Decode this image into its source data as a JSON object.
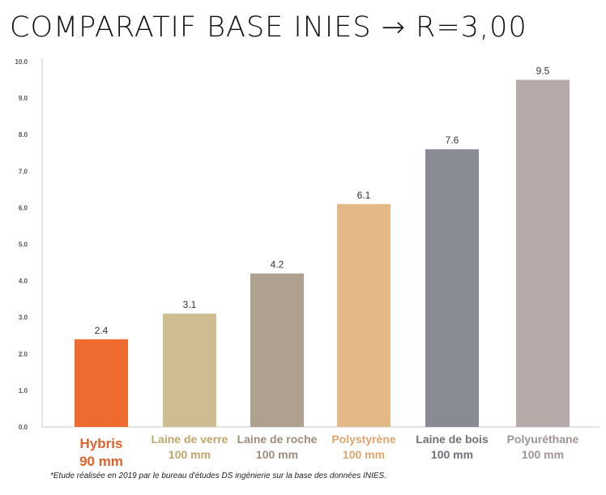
{
  "title": "COMPARATIF BASE INIES → R=3,00",
  "footnote": "*Etude réalisée en 2019 par le bureau d'études DS ingénierie sur la base des données INIES.",
  "chart_data": {
    "type": "bar",
    "categories": [
      {
        "name": "Hybris",
        "sub": "90 mm",
        "color": "#ef6a2f",
        "label_color": "#e0612a",
        "emphasis": true
      },
      {
        "name": "Laine de verre",
        "sub": "100 mm",
        "color": "#cfbd92",
        "label_color": "#bfa56c",
        "emphasis": false
      },
      {
        "name": "Laine de roche",
        "sub": "100 mm",
        "color": "#b0a090",
        "label_color": "#9c8c7c",
        "emphasis": false
      },
      {
        "name": "Polystyrène",
        "sub": "100 mm",
        "color": "#e3b987",
        "label_color": "#e0a470",
        "emphasis": false
      },
      {
        "name": "Laine de bois",
        "sub": "100 mm",
        "color": "#898b94",
        "label_color": "#6f717c",
        "emphasis": false
      },
      {
        "name": "Polyuréthane",
        "sub": "100 mm",
        "color": "#b6aba8",
        "label_color": "#a09491",
        "emphasis": false
      }
    ],
    "values": [
      2.4,
      3.1,
      4.2,
      6.1,
      7.6,
      9.5
    ],
    "value_labels": [
      "2.4",
      "3.1",
      "4.2",
      "6.1",
      "7.6",
      "9.5"
    ],
    "yticks": [
      "0.0",
      "1.0",
      "2.0",
      "3.0",
      "4.0",
      "5.0",
      "6.0",
      "7.0",
      "8.0",
      "9.0",
      "10.0"
    ],
    "ylim": [
      0,
      10
    ],
    "grid": false,
    "axis_color": "#c8c8c8"
  }
}
